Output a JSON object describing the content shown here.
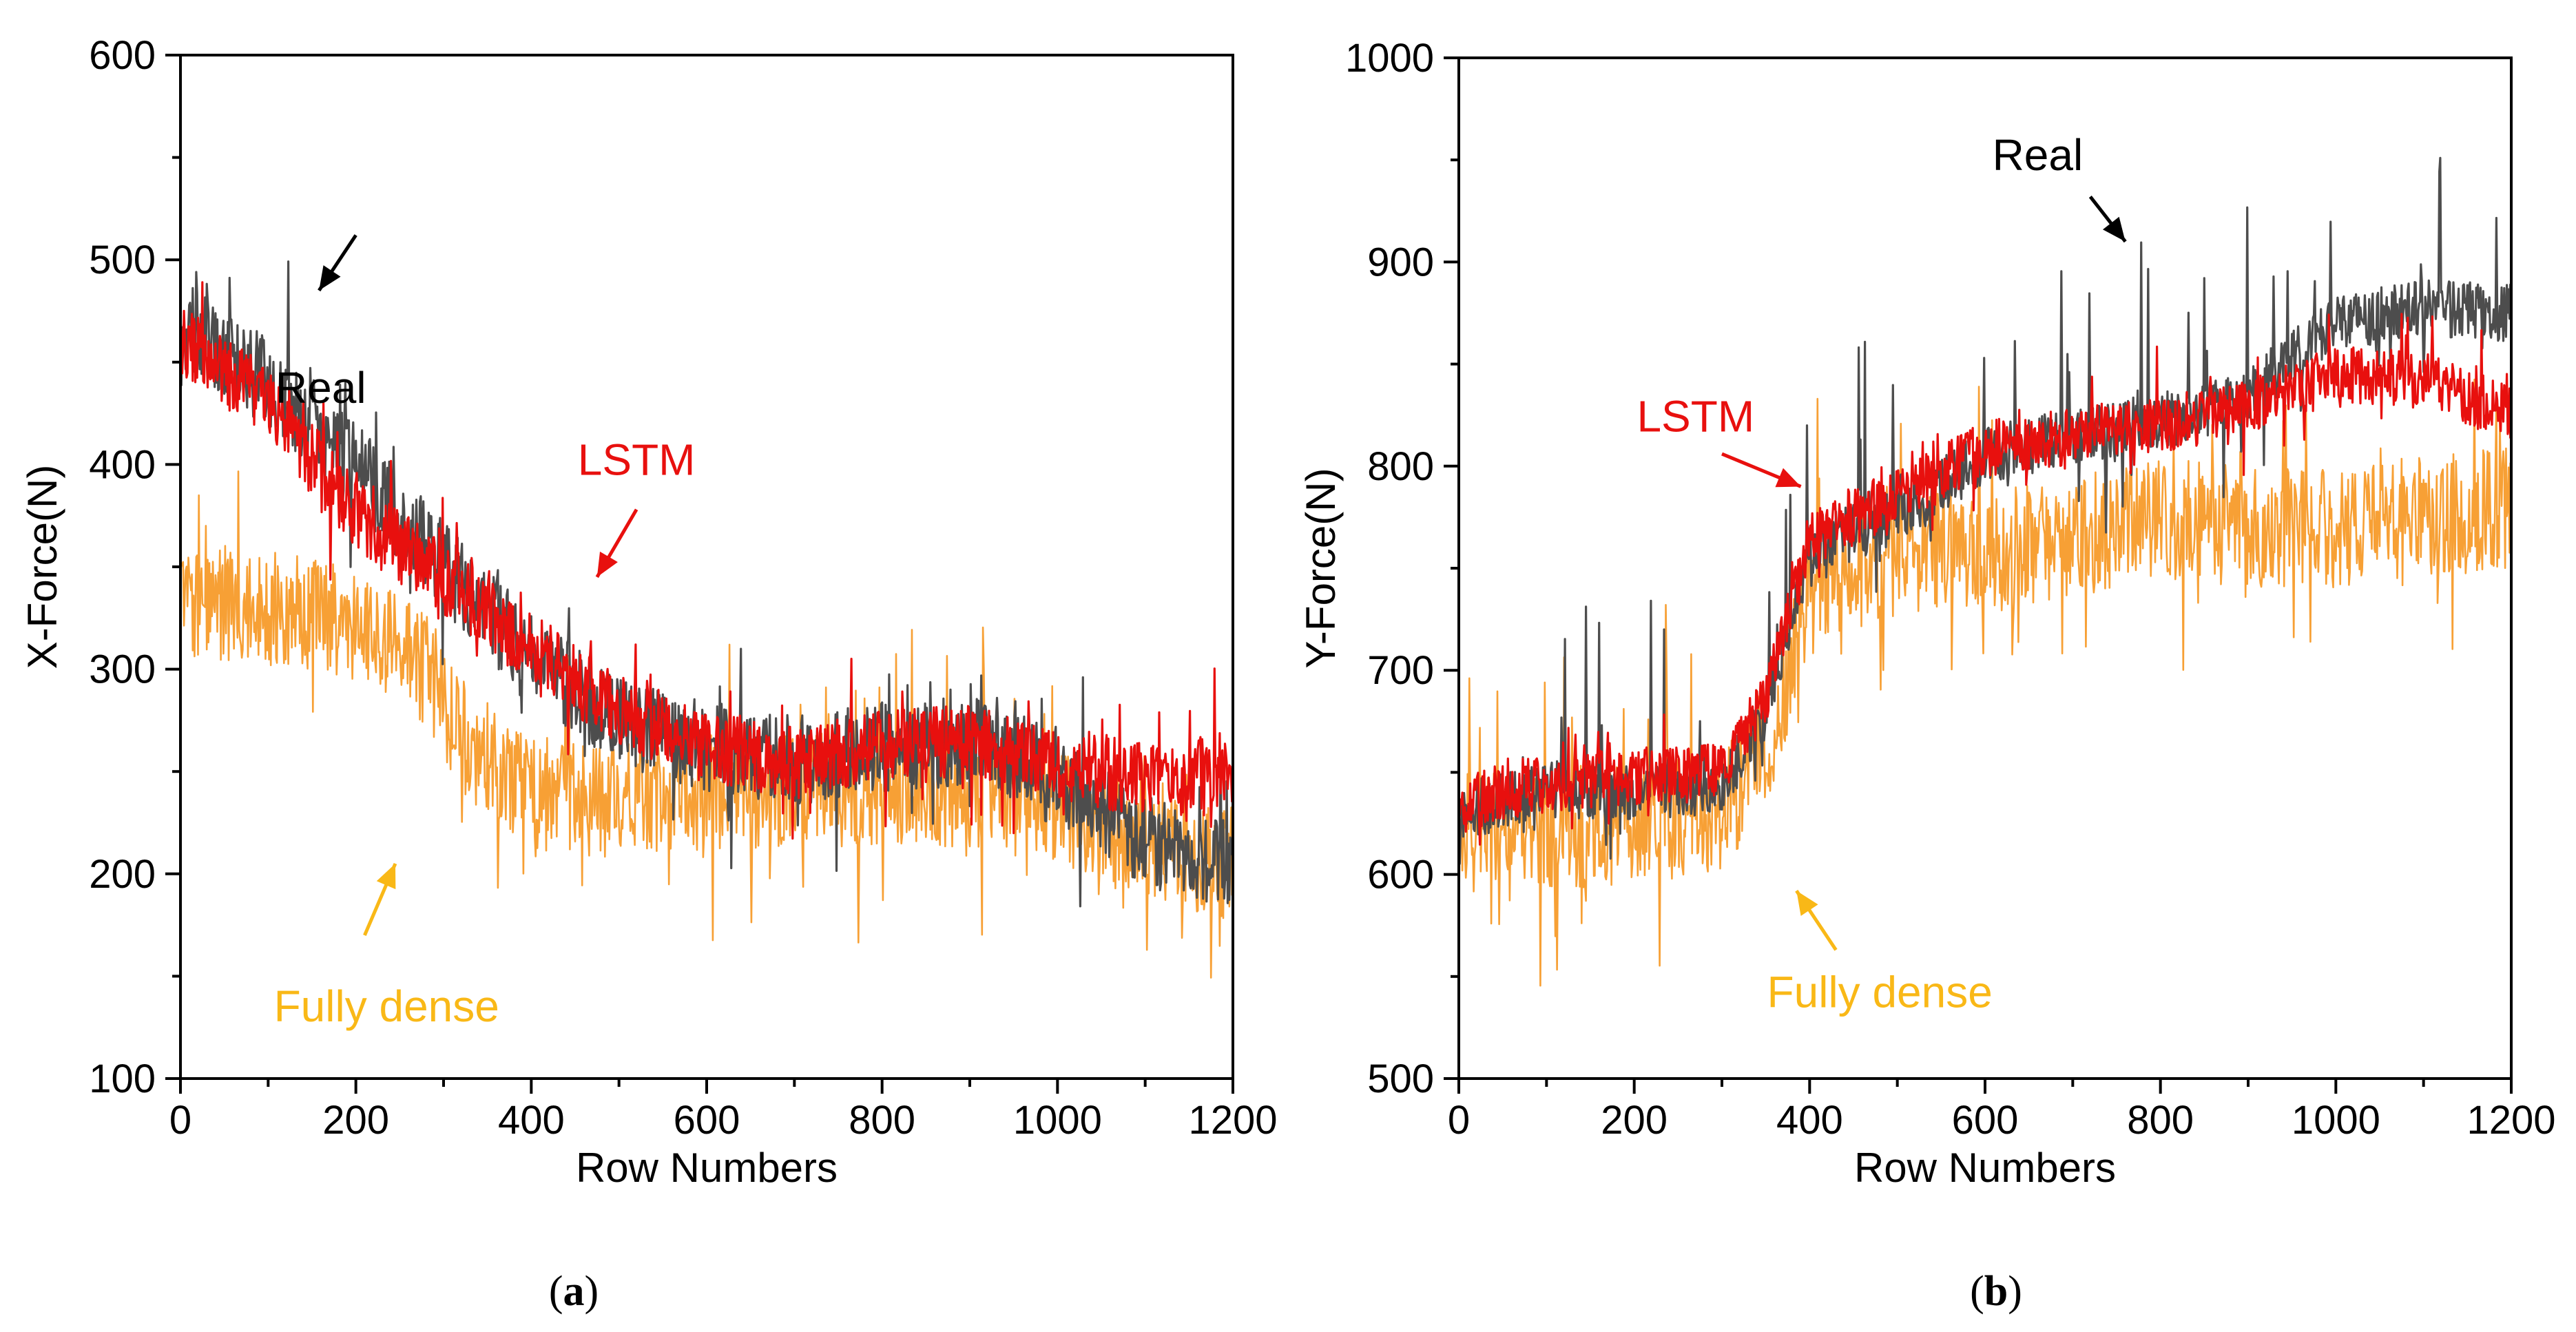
{
  "chart_data": [
    {
      "type": "line",
      "panel_label": "(a)",
      "panel_letter": "a",
      "xlabel": "Row Numbers",
      "ylabel": "X-Force(N)",
      "xlim": [
        0,
        1200
      ],
      "ylim": [
        100,
        600
      ],
      "x_ticks": [
        0,
        200,
        400,
        600,
        800,
        1000,
        1200
      ],
      "y_ticks": [
        100,
        200,
        300,
        400,
        500,
        600
      ],
      "series": [
        {
          "name": "Fully dense",
          "color": "#F7A035",
          "noise": 28,
          "spike_up": 60,
          "spike_down": 55,
          "anchors": [
            [
              0,
              335
            ],
            [
              100,
              330
            ],
            [
              200,
              322
            ],
            [
              280,
              300
            ],
            [
              330,
              262
            ],
            [
              400,
              240
            ],
            [
              500,
              235
            ],
            [
              600,
              240
            ],
            [
              700,
              240
            ],
            [
              800,
              242
            ],
            [
              900,
              240
            ],
            [
              1000,
              232
            ],
            [
              1100,
              215
            ],
            [
              1200,
              205
            ]
          ]
        },
        {
          "name": "Real",
          "color": "#4D4D4D",
          "noise": 22,
          "spike_up": 50,
          "spike_down": 40,
          "anchors": [
            [
              0,
              470
            ],
            [
              100,
              440
            ],
            [
              200,
              400
            ],
            [
              300,
              350
            ],
            [
              400,
              305
            ],
            [
              500,
              275
            ],
            [
              600,
              262
            ],
            [
              700,
              255
            ],
            [
              800,
              262
            ],
            [
              900,
              265
            ],
            [
              1000,
              250
            ],
            [
              1100,
              215
            ],
            [
              1200,
              205
            ]
          ]
        },
        {
          "name": "LSTM",
          "color": "#E8100E",
          "noise": 18,
          "spike_up": 35,
          "spike_down": 30,
          "anchors": [
            [
              0,
              460
            ],
            [
              100,
              430
            ],
            [
              200,
              375
            ],
            [
              300,
              345
            ],
            [
              400,
              310
            ],
            [
              500,
              280
            ],
            [
              600,
              262
            ],
            [
              700,
              255
            ],
            [
              800,
              262
            ],
            [
              900,
              265
            ],
            [
              1000,
              255
            ],
            [
              1100,
              245
            ],
            [
              1200,
              252
            ]
          ]
        }
      ],
      "annotations": [
        {
          "text": "Real",
          "color": "#000000",
          "tx": 160,
          "ty": 430,
          "ax1": 200,
          "ay1": 512,
          "ax2": 158,
          "ay2": 485
        },
        {
          "text": "LSTM",
          "color": "#E8100E",
          "tx": 520,
          "ty": 395,
          "ax1": 520,
          "ay1": 378,
          "ax2": 475,
          "ay2": 345
        },
        {
          "text": "Fully dense",
          "color": "#F9B817",
          "tx": 235,
          "ty": 128,
          "ax1": 210,
          "ay1": 170,
          "ax2": 245,
          "ay2": 205
        }
      ]
    },
    {
      "type": "line",
      "panel_label": "(b)",
      "panel_letter": "b",
      "xlabel": "Row Numbers",
      "ylabel": "Y-Force(N)",
      "xlim": [
        0,
        1200
      ],
      "ylim": [
        500,
        1000
      ],
      "x_ticks": [
        0,
        200,
        400,
        600,
        800,
        1000,
        1200
      ],
      "y_ticks": [
        500,
        600,
        700,
        800,
        900,
        1000
      ],
      "series": [
        {
          "name": "Fully dense",
          "color": "#F7A035",
          "noise": 30,
          "spike_up": 80,
          "spike_down": 60,
          "anchors": [
            [
              0,
              620
            ],
            [
              200,
              625
            ],
            [
              300,
              630
            ],
            [
              360,
              670
            ],
            [
              400,
              745
            ],
            [
              500,
              755
            ],
            [
              600,
              760
            ],
            [
              700,
              765
            ],
            [
              800,
              775
            ],
            [
              900,
              770
            ],
            [
              1000,
              770
            ],
            [
              1100,
              775
            ],
            [
              1200,
              780
            ]
          ]
        },
        {
          "name": "Real",
          "color": "#4D4D4D",
          "noise": 14,
          "spike_up": 95,
          "spike_down": 40,
          "anchors": [
            [
              0,
              630
            ],
            [
              100,
              642
            ],
            [
              200,
              640
            ],
            [
              300,
              640
            ],
            [
              350,
              680
            ],
            [
              400,
              760
            ],
            [
              500,
              775
            ],
            [
              600,
              805
            ],
            [
              700,
              815
            ],
            [
              800,
              822
            ],
            [
              900,
              835
            ],
            [
              1000,
              870
            ],
            [
              1100,
              878
            ],
            [
              1200,
              875
            ]
          ]
        },
        {
          "name": "LSTM",
          "color": "#E8100E",
          "noise": 14,
          "spike_up": 30,
          "spike_down": 25,
          "anchors": [
            [
              0,
              635
            ],
            [
              100,
              645
            ],
            [
              200,
              648
            ],
            [
              300,
              650
            ],
            [
              350,
              685
            ],
            [
              400,
              765
            ],
            [
              500,
              785
            ],
            [
              600,
              808
            ],
            [
              700,
              815
            ],
            [
              800,
              820
            ],
            [
              900,
              828
            ],
            [
              1000,
              845
            ],
            [
              1100,
              842
            ],
            [
              1200,
              825
            ]
          ]
        }
      ],
      "annotations": [
        {
          "text": "Real",
          "color": "#000000",
          "tx": 660,
          "ty": 945,
          "ax1": 720,
          "ay1": 932,
          "ax2": 760,
          "ay2": 910
        },
        {
          "text": "LSTM",
          "color": "#E8100E",
          "tx": 270,
          "ty": 817,
          "ax1": 300,
          "ay1": 806,
          "ax2": 390,
          "ay2": 790
        },
        {
          "text": "Fully dense",
          "color": "#F9B817",
          "tx": 480,
          "ty": 535,
          "ax1": 430,
          "ay1": 563,
          "ax2": 385,
          "ay2": 592
        }
      ]
    }
  ]
}
